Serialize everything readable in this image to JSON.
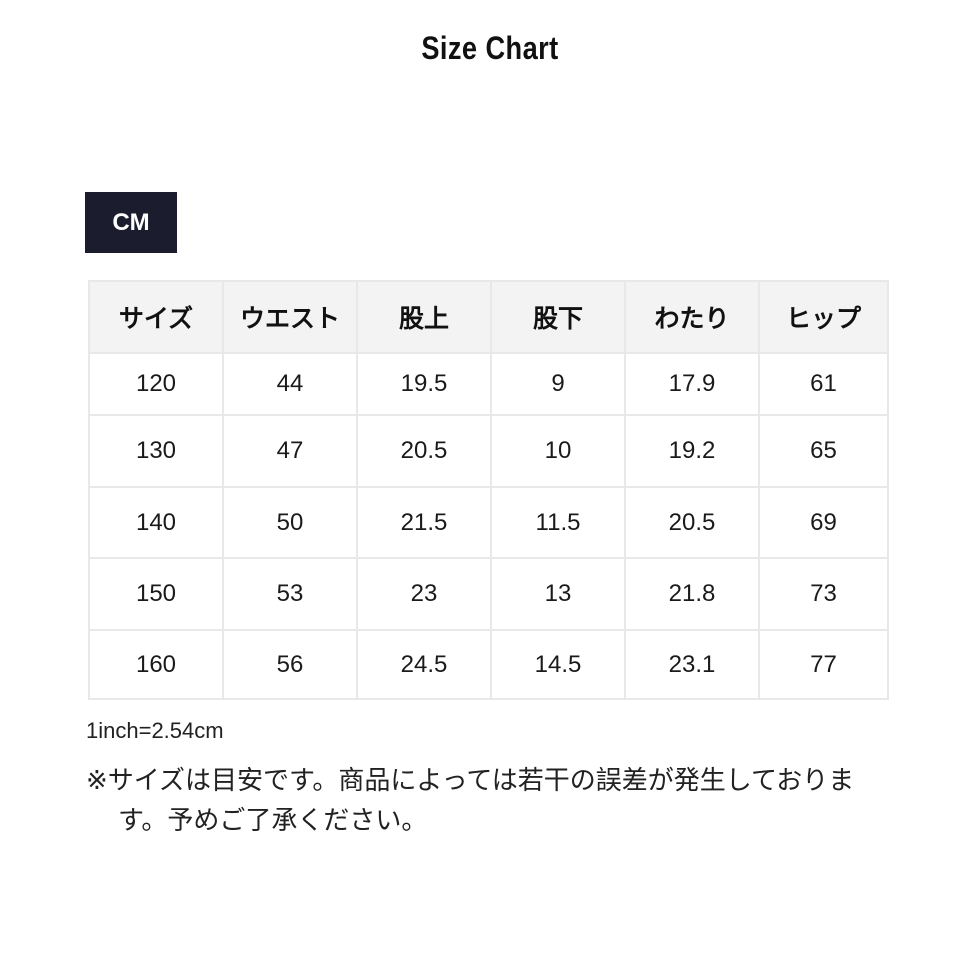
{
  "title": "Size Chart",
  "unit_label": "CM",
  "table": {
    "headers": [
      "サイズ",
      "ウエスト",
      "股上",
      "股下",
      "わたり",
      "ヒップ"
    ],
    "rows": [
      [
        "120",
        "44",
        "19.5",
        "9",
        "17.9",
        "61"
      ],
      [
        "130",
        "47",
        "20.5",
        "10",
        "19.2",
        "65"
      ],
      [
        "140",
        "50",
        "21.5",
        "11.5",
        "20.5",
        "69"
      ],
      [
        "150",
        "53",
        "23",
        "13",
        "21.8",
        "73"
      ],
      [
        "160",
        "56",
        "24.5",
        "14.5",
        "23.1",
        "77"
      ]
    ]
  },
  "notes": {
    "conversion": "1inch=2.54cm",
    "disclaimer": "※サイズは目安です。商品によっては若干の誤差が発生しております。予めご了承ください。"
  },
  "colors": {
    "unit_badge": "#1b1d2e",
    "header_bg": "#f3f3f3",
    "border": "#e8e8e8"
  }
}
